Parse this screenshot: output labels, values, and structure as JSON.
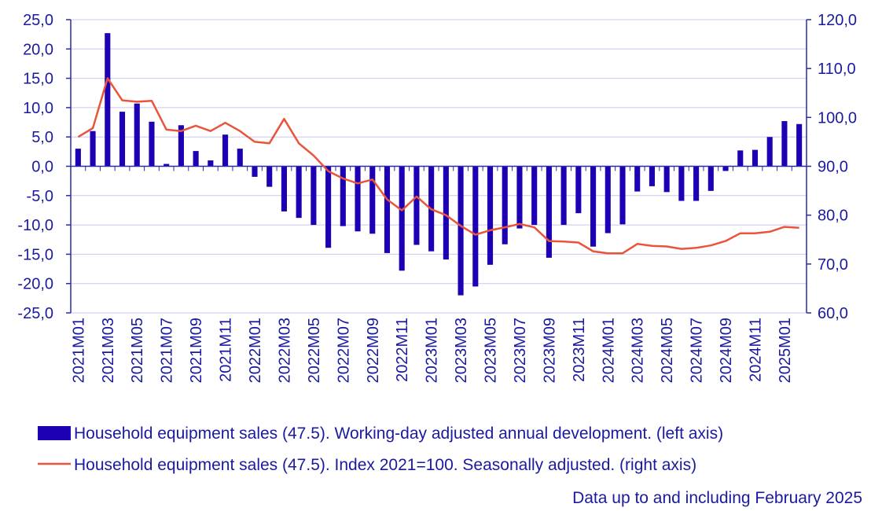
{
  "colors": {
    "bar": "#1e00b4",
    "line": "#e8553a",
    "axis": "#2a2aa8",
    "grid": "#c8c8ee",
    "text": "#1a1aa0"
  },
  "chart_data": {
    "type": "bar+line",
    "categories": [
      "2021M01",
      "2021M02",
      "2021M03",
      "2021M04",
      "2021M05",
      "2021M06",
      "2021M07",
      "2021M08",
      "2021M09",
      "2021M10",
      "2021M11",
      "2021M12",
      "2022M01",
      "2022M02",
      "2022M03",
      "2022M04",
      "2022M05",
      "2022M06",
      "2022M07",
      "2022M08",
      "2022M09",
      "2022M10",
      "2022M11",
      "2022M12",
      "2023M01",
      "2023M02",
      "2023M03",
      "2023M04",
      "2023M05",
      "2023M06",
      "2023M07",
      "2023M08",
      "2023M09",
      "2023M10",
      "2023M11",
      "2023M12",
      "2024M01",
      "2024M02",
      "2024M03",
      "2024M04",
      "2024M05",
      "2024M06",
      "2024M07",
      "2024M08",
      "2024M09",
      "2024M10",
      "2024M11",
      "2024M12",
      "2025M01",
      "2025M02"
    ],
    "x_tick_labels": [
      "2021M01",
      "2021M03",
      "2021M05",
      "2021M07",
      "2021M09",
      "2021M11",
      "2022M01",
      "2022M03",
      "2022M05",
      "2022M07",
      "2022M09",
      "2022M11",
      "2023M01",
      "2023M03",
      "2023M05",
      "2023M07",
      "2023M09",
      "2023M11",
      "2024M01",
      "2024M03",
      "2024M05",
      "2024M07",
      "2024M09",
      "2024M11",
      "2025M01"
    ],
    "series": [
      {
        "name": "Household equipment sales (47.5). Working-day adjusted annual development. (left axis)",
        "type": "bar",
        "axis": "left",
        "values": [
          3.0,
          6.0,
          22.7,
          9.3,
          10.7,
          7.6,
          0.4,
          7.0,
          2.6,
          1.0,
          5.4,
          3.0,
          -1.8,
          -3.5,
          -7.7,
          -8.8,
          -10.0,
          -13.9,
          -10.2,
          -11.1,
          -11.5,
          -14.8,
          -17.8,
          -13.4,
          -14.5,
          -15.9,
          -22.0,
          -20.5,
          -16.8,
          -13.3,
          -10.6,
          -10.0,
          -15.6,
          -10.0,
          -8.0,
          -13.7,
          -11.4,
          -9.9,
          -4.3,
          -3.4,
          -4.4,
          -5.9,
          -5.9,
          -4.2,
          -0.8,
          2.7,
          2.8,
          5.0,
          7.7,
          7.2
        ]
      },
      {
        "name": "Household equipment sales (47.5). Index 2021=100. Seasonally adjusted. (right axis)",
        "type": "line",
        "axis": "right",
        "values": [
          96.0,
          97.8,
          108.0,
          103.5,
          103.2,
          103.4,
          97.5,
          97.2,
          98.3,
          97.2,
          98.9,
          97.2,
          95.0,
          94.7,
          99.7,
          94.7,
          92.2,
          89.0,
          87.5,
          86.5,
          87.3,
          83.2,
          81.0,
          83.8,
          81.2,
          80.0,
          77.8,
          76.0,
          76.9,
          77.5,
          78.2,
          77.5,
          74.7,
          74.6,
          74.4,
          72.6,
          72.2,
          72.2,
          74.1,
          73.7,
          73.6,
          73.1,
          73.3,
          73.8,
          74.7,
          76.3,
          76.3,
          76.6,
          77.6,
          77.4
        ]
      }
    ],
    "y_left": {
      "min": -25,
      "max": 25,
      "step": 5,
      "tick_labels": [
        "-25,0",
        "-20,0",
        "-15,0",
        "-10,0",
        "-5,0",
        "0,0",
        "5,0",
        "10,0",
        "15,0",
        "20,0",
        "25,0"
      ]
    },
    "y_right": {
      "min": 60,
      "max": 120,
      "step": 10,
      "tick_labels": [
        "60,0",
        "70,0",
        "80,0",
        "90,0",
        "100,0",
        "110,0",
        "120,0"
      ]
    },
    "legend": {
      "position": "bottom",
      "bar_label": "Household equipment sales (47.5). Working-day adjusted annual development. (left axis)",
      "line_label": "Household equipment sales (47.5). Index 2021=100. Seasonally adjusted. (right axis)"
    },
    "note": "Data up to and including February 2025",
    "grid": true
  }
}
